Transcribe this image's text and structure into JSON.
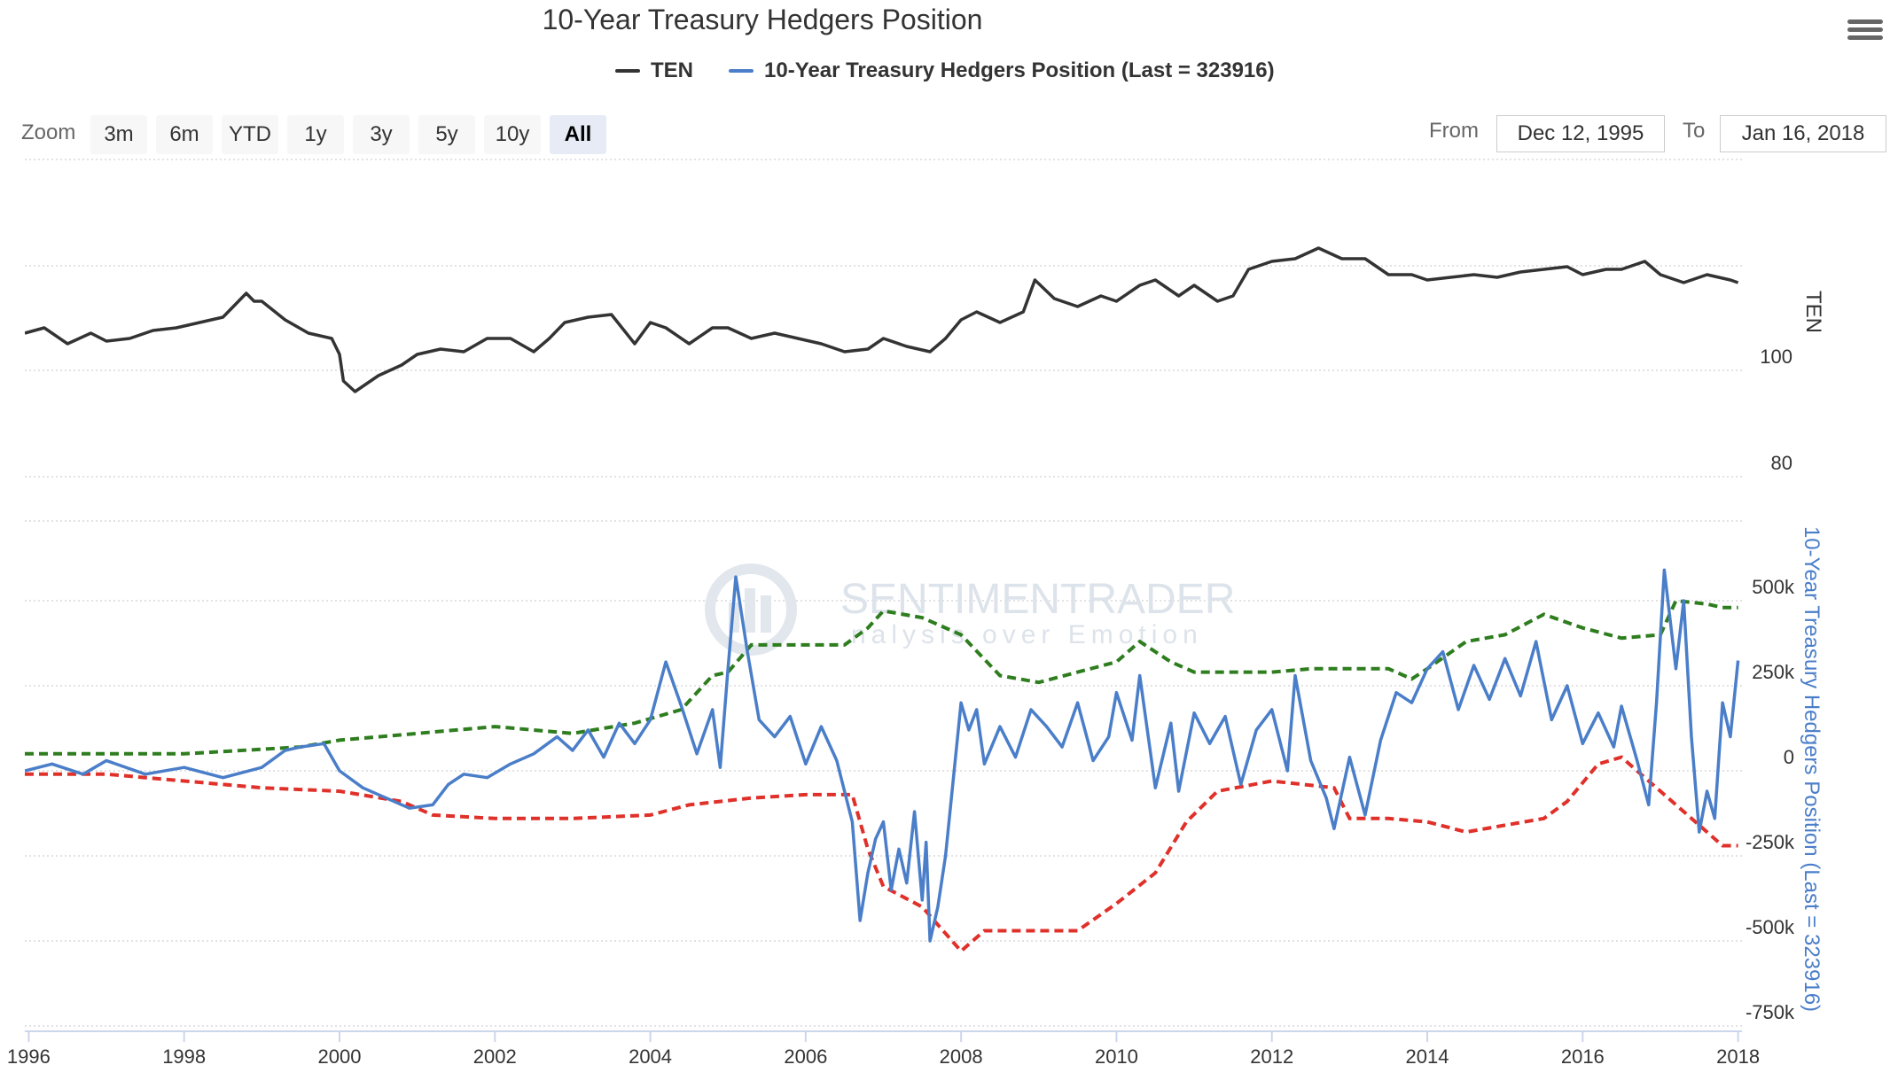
{
  "title": "10-Year Treasury Hedgers Position",
  "legend": {
    "ten_label": "TEN",
    "hedgers_label": "10-Year Treasury Hedgers Position (Last = 323916)"
  },
  "colors": {
    "ten": "#333333",
    "hedgers": "#4a7ec9",
    "upper_band": "#2e7d1e",
    "lower_band": "#e0302a",
    "grid": "#d8d8d8"
  },
  "zoom": {
    "label": "Zoom",
    "buttons": [
      "3m",
      "6m",
      "YTD",
      "1y",
      "3y",
      "5y",
      "10y",
      "All"
    ],
    "active": "All"
  },
  "range": {
    "from_label": "From",
    "from_value": "Dec 12, 1995",
    "to_label": "To",
    "to_value": "Jan 16, 2018"
  },
  "watermark": {
    "line1": "SENTIMENTRADER",
    "line2": "nalysis over Emotion"
  },
  "menu_icon": "hamburger-menu-icon",
  "chart_data": {
    "type": "line",
    "title": "10-Year Treasury Hedgers Position",
    "x_range": [
      1995.95,
      2018.05
    ],
    "x_ticks": [
      "1996",
      "1998",
      "2000",
      "2002",
      "2004",
      "2006",
      "2008",
      "2010",
      "2012",
      "2014",
      "2016",
      "2018"
    ],
    "panels": [
      {
        "name": "TEN",
        "y_axis_title": "TEN",
        "y_tick_labels": [
          "80",
          "100"
        ],
        "series": [
          {
            "name": "TEN",
            "x": [
              1995.95,
              1996.2,
              1996.5,
              1996.8,
              1997.0,
              1997.3,
              1997.6,
              1997.9,
              1998.2,
              1998.5,
              1998.8,
              1998.9,
              1999.0,
              1999.3,
              1999.6,
              1999.9,
              2000.0,
              2000.05,
              2000.2,
              2000.5,
              2000.8,
              2001.0,
              2001.3,
              2001.6,
              2001.9,
              2002.2,
              2002.5,
              2002.7,
              2002.9,
              2003.2,
              2003.5,
              2003.8,
              2004.0,
              2004.2,
              2004.5,
              2004.8,
              2005.0,
              2005.3,
              2005.6,
              2005.9,
              2006.2,
              2006.5,
              2006.8,
              2007.0,
              2007.3,
              2007.6,
              2007.8,
              2008.0,
              2008.2,
              2008.5,
              2008.8,
              2008.95,
              2009.2,
              2009.5,
              2009.8,
              2010.0,
              2010.3,
              2010.5,
              2010.8,
              2011.0,
              2011.3,
              2011.5,
              2011.7,
              2012.0,
              2012.3,
              2012.6,
              2012.9,
              2013.2,
              2013.5,
              2013.8,
              2014.0,
              2014.3,
              2014.6,
              2014.9,
              2015.2,
              2015.5,
              2015.8,
              2016.0,
              2016.3,
              2016.5,
              2016.8,
              2017.0,
              2017.3,
              2017.6,
              2017.9,
              2018.0
            ],
            "y": [
              107,
              108,
              105,
              107,
              105.5,
              106,
              107.5,
              108,
              109,
              110,
              114.5,
              113,
              113,
              109.5,
              107,
              106,
              103,
              98,
              96,
              99,
              101,
              103,
              104,
              103.5,
              106,
              106,
              103.5,
              106,
              109,
              110,
              110.5,
              105,
              109,
              108,
              105,
              108,
              108,
              106,
              107,
              106,
              105,
              103.5,
              104,
              106,
              104.5,
              103.5,
              106,
              109.5,
              111,
              109,
              111,
              117,
              113.5,
              112,
              114,
              113,
              116,
              117,
              114,
              116,
              113,
              114,
              119,
              120.5,
              121,
              123,
              121,
              121,
              118,
              118,
              117,
              117.5,
              118,
              117.5,
              118.5,
              119,
              119.5,
              118,
              119,
              119,
              120.5,
              118,
              116.5,
              118,
              117,
              116.5
            ]
          }
        ]
      },
      {
        "name": "10-Year Treasury Hedgers Position",
        "y_axis_title": "10-Year Treasury Hedgers Position (Last = 323916)",
        "y_tick_labels": [
          "500k",
          "250k",
          "0",
          "-250k",
          "-500k",
          "-750k"
        ],
        "y_range": [
          -750000,
          750000
        ],
        "series": [
          {
            "name": "10-Year Treasury Hedgers Position",
            "x": [
              1995.95,
              1996.3,
              1996.7,
              1997.0,
              1997.5,
              1998.0,
              1998.5,
              1999.0,
              1999.3,
              1999.5,
              1999.8,
              2000.0,
              2000.3,
              2000.6,
              2000.9,
              2001.2,
              2001.4,
              2001.6,
              2001.9,
              2002.2,
              2002.5,
              2002.8,
              2003.0,
              2003.2,
              2003.4,
              2003.6,
              2003.8,
              2004.0,
              2004.2,
              2004.4,
              2004.6,
              2004.8,
              2004.9,
              2005.0,
              2005.1,
              2005.25,
              2005.4,
              2005.6,
              2005.8,
              2006.0,
              2006.2,
              2006.4,
              2006.6,
              2006.7,
              2006.8,
              2006.9,
              2007.0,
              2007.1,
              2007.2,
              2007.3,
              2007.4,
              2007.5,
              2007.55,
              2007.6,
              2007.7,
              2007.8,
              2008.0,
              2008.1,
              2008.2,
              2008.3,
              2008.5,
              2008.7,
              2008.9,
              2009.1,
              2009.3,
              2009.5,
              2009.7,
              2009.9,
              2010.0,
              2010.2,
              2010.3,
              2010.5,
              2010.7,
              2010.8,
              2011.0,
              2011.2,
              2011.4,
              2011.6,
              2011.8,
              2012.0,
              2012.2,
              2012.3,
              2012.5,
              2012.7,
              2012.8,
              2013.0,
              2013.2,
              2013.4,
              2013.6,
              2013.8,
              2014.0,
              2014.2,
              2014.4,
              2014.6,
              2014.8,
              2015.0,
              2015.2,
              2015.4,
              2015.6,
              2015.8,
              2016.0,
              2016.2,
              2016.4,
              2016.5,
              2016.7,
              2016.85,
              2016.95,
              2017.05,
              2017.2,
              2017.3,
              2017.4,
              2017.5,
              2017.6,
              2017.7,
              2017.8,
              2017.9,
              2018.0
            ],
            "y": [
              0,
              20000,
              -10000,
              30000,
              -10000,
              10000,
              -20000,
              10000,
              60000,
              70000,
              80000,
              0,
              -50000,
              -80000,
              -110000,
              -100000,
              -40000,
              -10000,
              -20000,
              20000,
              50000,
              100000,
              60000,
              120000,
              40000,
              140000,
              80000,
              150000,
              320000,
              190000,
              50000,
              180000,
              10000,
              300000,
              570000,
              350000,
              150000,
              100000,
              160000,
              20000,
              130000,
              30000,
              -150000,
              -440000,
              -300000,
              -200000,
              -150000,
              -350000,
              -230000,
              -330000,
              -120000,
              -380000,
              -210000,
              -500000,
              -400000,
              -250000,
              200000,
              120000,
              180000,
              20000,
              130000,
              40000,
              180000,
              130000,
              70000,
              200000,
              30000,
              100000,
              230000,
              90000,
              280000,
              -50000,
              140000,
              -60000,
              170000,
              80000,
              160000,
              -40000,
              120000,
              180000,
              0,
              280000,
              30000,
              -80000,
              -170000,
              40000,
              -130000,
              90000,
              230000,
              200000,
              300000,
              350000,
              180000,
              310000,
              210000,
              330000,
              220000,
              380000,
              150000,
              250000,
              80000,
              170000,
              70000,
              190000,
              30000,
              -100000,
              200000,
              590000,
              300000,
              500000,
              100000,
              -180000,
              -60000,
              -140000,
              200000,
              100000,
              323916
            ]
          },
          {
            "name": "Upper band",
            "x": [
              1995.95,
              1998.0,
              1999.5,
              2000.0,
              2001.0,
              2002.0,
              2003.0,
              2003.8,
              2004.4,
              2004.8,
              2005.0,
              2005.3,
              2006.5,
              2006.8,
              2007.0,
              2007.5,
              2008.0,
              2008.5,
              2009.0,
              2009.5,
              2010.0,
              2010.3,
              2010.7,
              2011.0,
              2012.0,
              2012.5,
              2013.0,
              2013.5,
              2013.8,
              2014.0,
              2014.5,
              2015.0,
              2015.5,
              2016.0,
              2016.5,
              2017.0,
              2017.2,
              2017.6,
              2017.8,
              2018.0
            ],
            "y": [
              50000,
              50000,
              70000,
              90000,
              110000,
              130000,
              110000,
              140000,
              180000,
              280000,
              290000,
              370000,
              370000,
              420000,
              470000,
              450000,
              400000,
              280000,
              260000,
              290000,
              320000,
              380000,
              320000,
              290000,
              290000,
              300000,
              300000,
              300000,
              270000,
              300000,
              380000,
              400000,
              460000,
              420000,
              390000,
              400000,
              500000,
              490000,
              480000,
              480000
            ]
          },
          {
            "name": "Lower band",
            "x": [
              1995.95,
              1997.0,
              1998.0,
              1999.0,
              2000.0,
              2000.8,
              2001.2,
              2002.0,
              2003.0,
              2004.0,
              2004.5,
              2005.3,
              2006.0,
              2006.6,
              2006.8,
              2007.0,
              2007.5,
              2008.0,
              2008.3,
              2009.0,
              2009.5,
              2010.0,
              2010.5,
              2010.9,
              2011.3,
              2012.0,
              2012.8,
              2013.0,
              2013.5,
              2014.0,
              2014.5,
              2015.0,
              2015.5,
              2015.8,
              2016.2,
              2016.5,
              2016.8,
              2017.0,
              2017.5,
              2017.8,
              2018.0
            ],
            "y": [
              -10000,
              -10000,
              -30000,
              -50000,
              -60000,
              -90000,
              -130000,
              -140000,
              -140000,
              -130000,
              -100000,
              -80000,
              -70000,
              -70000,
              -230000,
              -340000,
              -400000,
              -530000,
              -470000,
              -470000,
              -470000,
              -390000,
              -300000,
              -150000,
              -60000,
              -30000,
              -50000,
              -140000,
              -140000,
              -150000,
              -180000,
              -160000,
              -140000,
              -90000,
              20000,
              40000,
              -20000,
              -60000,
              -160000,
              -220000,
              -220000
            ]
          }
        ]
      }
    ]
  }
}
